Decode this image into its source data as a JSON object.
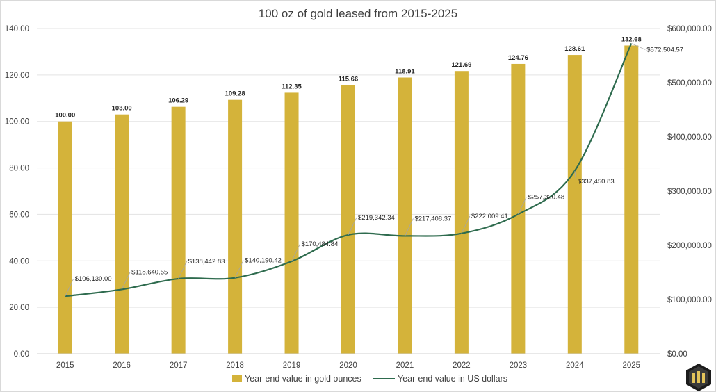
{
  "chart_data": {
    "type": "bar",
    "title": "100 oz of gold leased from 2015-2025",
    "categories": [
      "2015",
      "2016",
      "2017",
      "2018",
      "2019",
      "2020",
      "2021",
      "2022",
      "2023",
      "2024",
      "2025"
    ],
    "series": [
      {
        "name": "Year-end value in gold ounces",
        "type": "bar",
        "axis": "left",
        "color": "#d4b33a",
        "values": [
          100.0,
          103.0,
          106.29,
          109.28,
          112.35,
          115.66,
          118.91,
          121.69,
          124.76,
          128.61,
          132.68
        ],
        "labels": [
          "100.00",
          "103.00",
          "106.29",
          "109.28",
          "112.35",
          "115.66",
          "118.91",
          "121.69",
          "124.76",
          "128.61",
          "132.68"
        ]
      },
      {
        "name": "Year-end value in US dollars",
        "type": "line",
        "axis": "right",
        "color": "#2e6b4e",
        "values": [
          106130.0,
          118640.55,
          138442.83,
          140190.42,
          170484.84,
          219342.34,
          217408.37,
          222009.41,
          257320.48,
          337450.83,
          572504.57
        ],
        "labels": [
          "$106,130.00",
          "$118,640.55",
          "$138,442.83",
          "$140,190.42",
          "$170,484.84",
          "$219,342.34",
          "$217,408.37",
          "$222,009.41",
          "$257,320.48",
          "$337,450.83",
          "$572,504.57"
        ]
      }
    ],
    "y_left": {
      "ylim": [
        0,
        140
      ],
      "ticks": [
        "0.00",
        "20.00",
        "40.00",
        "60.00",
        "80.00",
        "100.00",
        "120.00",
        "140.00"
      ]
    },
    "y_right": {
      "ylim": [
        0,
        600000
      ],
      "ticks": [
        "$0.00",
        "$100,000.00",
        "$200,000.00",
        "$300,000.00",
        "$400,000.00",
        "$500,000.00",
        "$600,000.00"
      ]
    },
    "grid": true,
    "legend": "bottom"
  },
  "logo": {
    "name": "gold-logo-icon"
  }
}
